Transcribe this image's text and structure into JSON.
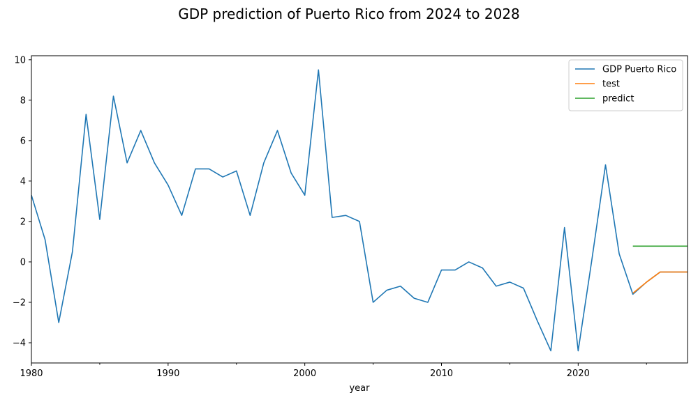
{
  "figure_title": "GDP prediction of Puerto Rico from 2024 to 2028",
  "chart_data": {
    "type": "line",
    "title": "GDP prediction of Puerto Rico from 2024 to 2028",
    "xlabel": "year",
    "ylabel": "",
    "xlim": [
      1980,
      2028
    ],
    "ylim": [
      -5.0,
      10.2
    ],
    "x_ticks": [
      1980,
      1990,
      2000,
      2010,
      2020
    ],
    "x_minor_ticks": [
      1985,
      1995,
      2005,
      2015,
      2025
    ],
    "y_ticks": [
      -4,
      -2,
      0,
      2,
      4,
      6,
      8,
      10
    ],
    "y_tick_labels": [
      "−4",
      "−2",
      "0",
      "2",
      "4",
      "6",
      "8",
      "10"
    ],
    "grid": false,
    "legend_position": "upper right",
    "series": [
      {
        "name": "GDP Puerto Rico",
        "color": "#1f77b4",
        "x": [
          1980,
          1981,
          1982,
          1983,
          1984,
          1985,
          1986,
          1987,
          1988,
          1989,
          1990,
          1991,
          1992,
          1993,
          1994,
          1995,
          1996,
          1997,
          1998,
          1999,
          2000,
          2001,
          2002,
          2003,
          2004,
          2005,
          2006,
          2007,
          2008,
          2009,
          2010,
          2011,
          2012,
          2013,
          2014,
          2015,
          2016,
          2017,
          2018,
          2019,
          2020,
          2021,
          2022,
          2023,
          2024,
          2025,
          2026,
          2027,
          2028
        ],
        "y": [
          3.3,
          1.1,
          -3.0,
          0.5,
          7.3,
          2.1,
          8.2,
          4.9,
          6.5,
          4.9,
          3.8,
          2.3,
          4.6,
          4.6,
          4.2,
          4.5,
          2.3,
          4.9,
          6.5,
          4.4,
          3.3,
          9.5,
          2.2,
          2.3,
          2.0,
          -2.0,
          -1.4,
          -1.2,
          -1.8,
          -2.0,
          -0.4,
          -0.4,
          0.0,
          -0.3,
          -1.2,
          -1.0,
          -1.3,
          -2.9,
          -4.4,
          1.7,
          -4.4,
          0.1,
          4.8,
          0.4,
          -1.6,
          -1.0,
          -0.5,
          -0.5,
          -0.5
        ]
      },
      {
        "name": "test",
        "color": "#ff7f0e",
        "x": [
          2024,
          2025,
          2026,
          2027,
          2028
        ],
        "y": [
          -1.55,
          -1.0,
          -0.5,
          -0.5,
          -0.5
        ]
      },
      {
        "name": "predict",
        "color": "#2ca02c",
        "x": [
          2024,
          2025,
          2026,
          2027,
          2028
        ],
        "y": [
          0.78,
          0.78,
          0.78,
          0.78,
          0.78
        ]
      }
    ]
  }
}
